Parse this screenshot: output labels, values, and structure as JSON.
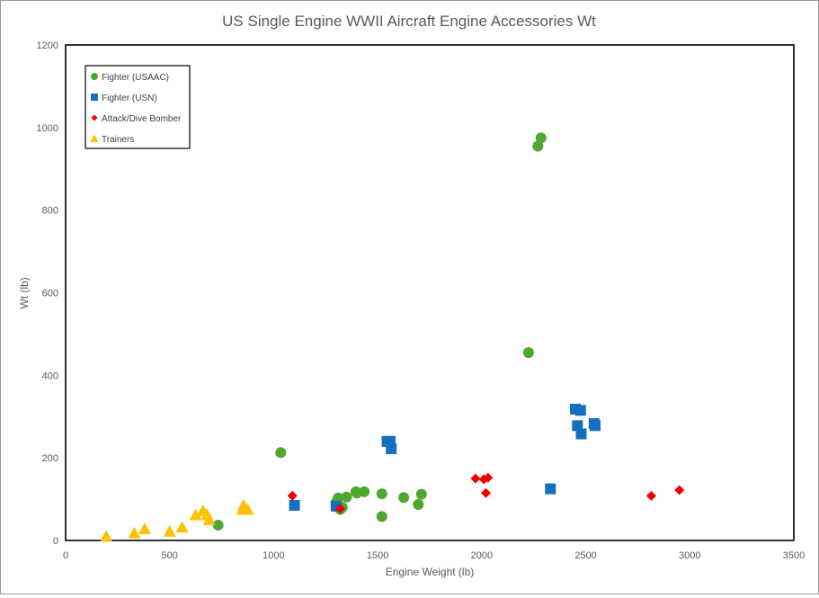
{
  "chart_data": {
    "type": "scatter",
    "title": "US Single Engine WWII Aircraft Engine Accessories Wt",
    "xlabel": "Engine Weight (lb)",
    "ylabel": "Wt (lb)",
    "xlim": [
      0,
      3500
    ],
    "ylim": [
      0,
      1200
    ],
    "xticks": [
      0,
      500,
      1000,
      1500,
      2000,
      2500,
      3000,
      3500
    ],
    "yticks": [
      0,
      200,
      400,
      600,
      800,
      1000,
      1200
    ],
    "grid": false,
    "legend_position": "top-left",
    "series": [
      {
        "name": "Fighter (USAAC)",
        "marker": "circle",
        "color": "#4ea72e",
        "points": [
          [
            733,
            37
          ],
          [
            1034,
            213
          ],
          [
            1300,
            92
          ],
          [
            1310,
            103
          ],
          [
            1320,
            75
          ],
          [
            1330,
            80
          ],
          [
            1350,
            105
          ],
          [
            1395,
            118
          ],
          [
            1400,
            115
          ],
          [
            1435,
            118
          ],
          [
            1520,
            113
          ],
          [
            1520,
            58
          ],
          [
            1625,
            104
          ],
          [
            1695,
            87
          ],
          [
            1710,
            112
          ],
          [
            2225,
            455
          ],
          [
            2270,
            955
          ],
          [
            2285,
            975
          ]
        ]
      },
      {
        "name": "Fighter (USN)",
        "marker": "square",
        "color": "#156fc0",
        "points": [
          [
            1100,
            85
          ],
          [
            1300,
            83
          ],
          [
            1545,
            240
          ],
          [
            1560,
            240
          ],
          [
            1565,
            222
          ],
          [
            2330,
            125
          ],
          [
            2450,
            318
          ],
          [
            2475,
            315
          ],
          [
            2460,
            278
          ],
          [
            2478,
            258
          ],
          [
            2540,
            283
          ],
          [
            2545,
            278
          ]
        ]
      },
      {
        "name": "Attack/Dive Bomber",
        "marker": "diamond",
        "color": "#ee0000",
        "points": [
          [
            1090,
            108
          ],
          [
            1320,
            77
          ],
          [
            1970,
            150
          ],
          [
            2010,
            148
          ],
          [
            2030,
            152
          ],
          [
            2020,
            115
          ],
          [
            2815,
            108
          ],
          [
            2950,
            122
          ]
        ]
      },
      {
        "name": "Trainers",
        "marker": "triangle",
        "color": "#ffc000",
        "points": [
          [
            195,
            10
          ],
          [
            330,
            18
          ],
          [
            380,
            28
          ],
          [
            500,
            22
          ],
          [
            560,
            32
          ],
          [
            625,
            62
          ],
          [
            660,
            72
          ],
          [
            680,
            62
          ],
          [
            690,
            50
          ],
          [
            850,
            75
          ],
          [
            855,
            85
          ],
          [
            875,
            75
          ]
        ]
      }
    ]
  }
}
